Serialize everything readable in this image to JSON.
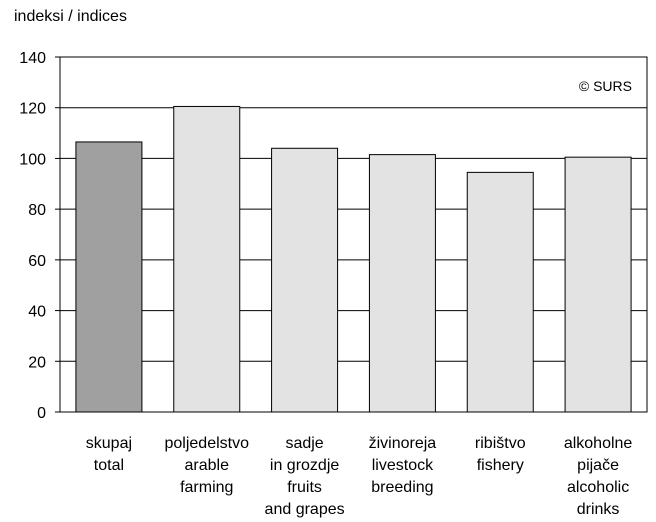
{
  "chart_data": {
    "type": "bar",
    "ylabel": "indeksi / indices",
    "ylim": [
      0,
      140
    ],
    "yticks": [
      0,
      20,
      40,
      60,
      80,
      100,
      120,
      140
    ],
    "grid": true,
    "annotation": "© SURS",
    "categories": [
      [
        "skupaj",
        "total"
      ],
      [
        "poljedelstvo",
        "arable",
        "farming"
      ],
      [
        "sadje",
        "in grozdje",
        "fruits",
        "and grapes"
      ],
      [
        "živinoreja",
        "livestock",
        "breeding"
      ],
      [
        "ribištvo",
        "fishery"
      ],
      [
        "alkoholne",
        "pijače",
        "alcoholic",
        "drinks"
      ]
    ],
    "values": [
      106.5,
      120.5,
      104,
      101.5,
      94.5,
      100.5
    ],
    "colors": [
      "#a0a0a0",
      "#e3e3e3",
      "#e3e3e3",
      "#e3e3e3",
      "#e3e3e3",
      "#e3e3e3"
    ]
  }
}
